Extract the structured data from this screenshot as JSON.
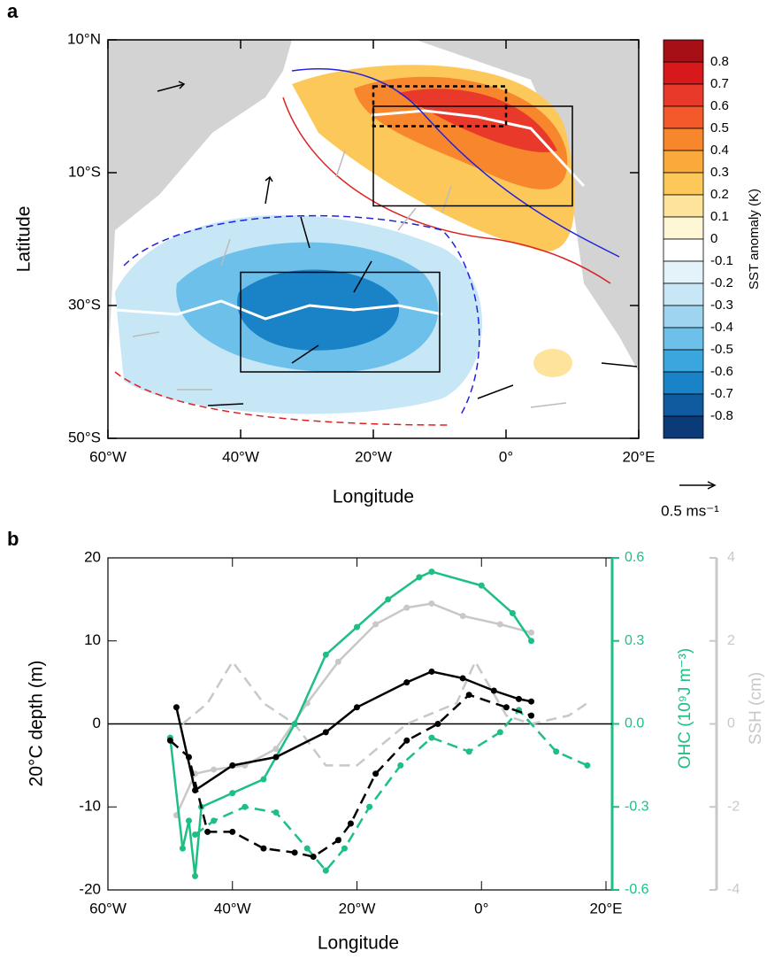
{
  "chart_data": [
    {
      "type": "map",
      "label": "a",
      "xlabel": "Longitude",
      "ylabel": "Latitude",
      "xlim": [
        -60,
        20
      ],
      "ylim": [
        -50,
        10
      ],
      "xticks": [
        {
          "value": -60,
          "label": "60°W"
        },
        {
          "value": -40,
          "label": "40°W"
        },
        {
          "value": -20,
          "label": "20°W"
        },
        {
          "value": 0,
          "label": "0°"
        },
        {
          "value": 20,
          "label": "20°E"
        }
      ],
      "yticks": [
        {
          "value": 10,
          "label": "10°N"
        },
        {
          "value": -10,
          "label": "10°S"
        },
        {
          "value": -30,
          "label": "30°S"
        },
        {
          "value": -50,
          "label": "50°S"
        }
      ],
      "boxes": [
        {
          "lon": [
            -40,
            -10
          ],
          "lat": [
            -40,
            -25
          ],
          "style": "solid"
        },
        {
          "lon": [
            -20,
            10
          ],
          "lat": [
            -15,
            0
          ],
          "style": "solid"
        },
        {
          "lon": [
            -20,
            0
          ],
          "lat": [
            -3,
            3
          ],
          "style": "dashed"
        }
      ],
      "colorbar": {
        "label": "SST anomaly (K)",
        "ticks": [
          0.8,
          0.7,
          0.6,
          0.5,
          0.4,
          0.3,
          0.2,
          0.1,
          0,
          -0.1,
          -0.2,
          -0.3,
          -0.4,
          -0.5,
          -0.6,
          -0.7,
          -0.8
        ],
        "colors": [
          "#a50f15",
          "#d7191c",
          "#e8392a",
          "#f4592c",
          "#f8862c",
          "#fba93a",
          "#fdc85a",
          "#fee49a",
          "#fff6d5",
          "#ffffff",
          "#e4f2fa",
          "#c7e7f6",
          "#9ed4f0",
          "#6cc0ea",
          "#3aa6de",
          "#1a82c6",
          "#105aa0",
          "#0b3a78"
        ]
      },
      "reference_vector": "0.5 ms⁻¹"
    },
    {
      "type": "line",
      "label": "b",
      "xlabel": "Longitude",
      "ylabel": "20°C depth (m)",
      "y2label": "OHC (10⁹J m⁻³)",
      "y3label": "SSH (cm)",
      "xlim": [
        -60,
        20
      ],
      "ylim": [
        -20,
        20
      ],
      "y2lim": [
        -0.6,
        0.6
      ],
      "y3lim": [
        -4,
        4
      ],
      "xticks": [
        {
          "value": -60,
          "label": "60°W"
        },
        {
          "value": -40,
          "label": "40°W"
        },
        {
          "value": -20,
          "label": "20°W"
        },
        {
          "value": 0,
          "label": "0°"
        },
        {
          "value": 20,
          "label": "20°E"
        }
      ],
      "yticks": [
        -20,
        -10,
        0,
        10,
        20
      ],
      "y2ticks": [
        {
          "value": -0.6,
          "label": "-0.6"
        },
        {
          "value": -0.3,
          "label": "-0.3"
        },
        {
          "value": 0,
          "label": "0.0"
        },
        {
          "value": 0.3,
          "label": "0.3"
        },
        {
          "value": 0.6,
          "label": "0.6"
        }
      ],
      "y3ticks": [
        -4,
        -2,
        0,
        2,
        4
      ],
      "y2color": "#1dbf83",
      "y3color": "#c8c8c8",
      "series": [
        {
          "color": "#c8c8c8",
          "axis": "y3",
          "style": "solid",
          "markers": true,
          "x": [
            -49,
            -46,
            -43,
            -38,
            -33,
            -28,
            -23,
            -17,
            -12,
            -8,
            -3,
            3,
            8
          ],
          "values": [
            -2.2,
            -1.2,
            -1.1,
            -1,
            -0.6,
            0.5,
            1.5,
            2.4,
            2.8,
            2.9,
            2.6,
            2.4,
            2.2
          ]
        },
        {
          "color": "#c8c8c8",
          "axis": "y3",
          "style": "dashed",
          "markers": false,
          "x": [
            -48,
            -44,
            -40,
            -35,
            -30,
            -25,
            -20,
            -12,
            -4,
            -1,
            4,
            8,
            14,
            17
          ],
          "values": [
            0,
            0.5,
            1.5,
            0.5,
            0,
            -1,
            -1,
            0,
            0.5,
            1.5,
            0.2,
            0,
            0.2,
            0.5
          ]
        },
        {
          "color": "#1dbf83",
          "axis": "y2",
          "style": "solid",
          "markers": true,
          "x": [
            -50,
            -48,
            -47,
            -46,
            -45,
            -40,
            -35,
            -30,
            -25,
            -20,
            -15,
            -10,
            -8,
            0,
            5,
            8
          ],
          "values": [
            -0.05,
            -0.45,
            -0.35,
            -0.55,
            -0.3,
            -0.25,
            -0.2,
            0,
            0.25,
            0.35,
            0.45,
            0.53,
            0.55,
            0.5,
            0.4,
            0.3
          ]
        },
        {
          "color": "#1dbf83",
          "axis": "y2",
          "style": "dashed",
          "markers": true,
          "x": [
            -46,
            -43,
            -38,
            -33,
            -28,
            -25,
            -22,
            -18,
            -13,
            -8,
            -2,
            3,
            6,
            12,
            17
          ],
          "values": [
            -0.4,
            -0.35,
            -0.3,
            -0.32,
            -0.45,
            -0.53,
            -0.45,
            -0.3,
            -0.15,
            -0.05,
            -0.1,
            -0.03,
            0.05,
            -0.1,
            -0.15
          ]
        },
        {
          "color": "#000000",
          "axis": "y",
          "style": "solid",
          "markers": true,
          "x": [
            -49,
            -46,
            -40,
            -33,
            -25,
            -20,
            -12,
            -8,
            -3,
            2,
            6,
            8
          ],
          "values": [
            2,
            -8,
            -5,
            -4,
            -1,
            2,
            5,
            6.3,
            5.5,
            4,
            3,
            2.7
          ]
        },
        {
          "color": "#000000",
          "axis": "y",
          "style": "dashed",
          "markers": true,
          "x": [
            -50,
            -47,
            -44,
            -40,
            -35,
            -30,
            -27,
            -23,
            -21,
            -17,
            -12,
            -7,
            -2,
            4,
            8
          ],
          "values": [
            -2,
            -4,
            -13,
            -13,
            -15,
            -15.5,
            -16,
            -14,
            -12,
            -6,
            -2,
            0,
            3.5,
            2,
            1
          ]
        }
      ]
    }
  ]
}
